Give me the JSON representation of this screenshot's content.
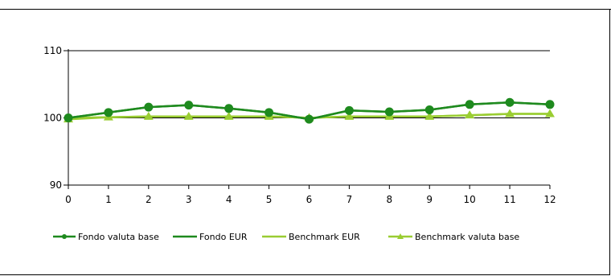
{
  "chart_data": {
    "type": "line",
    "title": "",
    "xlabel": "",
    "ylabel": "",
    "x": [
      0,
      1,
      2,
      3,
      4,
      5,
      6,
      7,
      8,
      9,
      10,
      11,
      12
    ],
    "ylim": [
      90,
      110
    ],
    "yticks": [
      90,
      100,
      110
    ],
    "grid": "horizontal",
    "legend_position": "bottom",
    "series": [
      {
        "name": "Fondo valuta base",
        "marker": "circle",
        "color": "#1e8a1e",
        "values": [
          100,
          100.8,
          101.6,
          101.9,
          101.4,
          100.8,
          99.8,
          101.1,
          100.9,
          101.2,
          102.0,
          102.3,
          102.0
        ]
      },
      {
        "name": "Fondo EUR",
        "marker": "none",
        "color": "#1e8a1e",
        "values": [
          100,
          100.8,
          101.6,
          101.9,
          101.4,
          100.8,
          99.8,
          101.1,
          100.9,
          101.2,
          102.0,
          102.3,
          102.0
        ]
      },
      {
        "name": "Benchmark EUR",
        "marker": "none",
        "color": "#9acd32",
        "values": [
          100,
          100.1,
          100.2,
          100.2,
          100.2,
          100.2,
          100.0,
          100.2,
          100.2,
          100.2,
          100.4,
          100.6,
          100.6
        ]
      },
      {
        "name": "Benchmark valuta base",
        "marker": "triangle",
        "color": "#9acd32",
        "values": [
          99.8,
          100.1,
          100.2,
          100.2,
          100.2,
          100.2,
          100.0,
          100.2,
          100.2,
          100.2,
          100.4,
          100.6,
          100.6
        ]
      }
    ]
  }
}
